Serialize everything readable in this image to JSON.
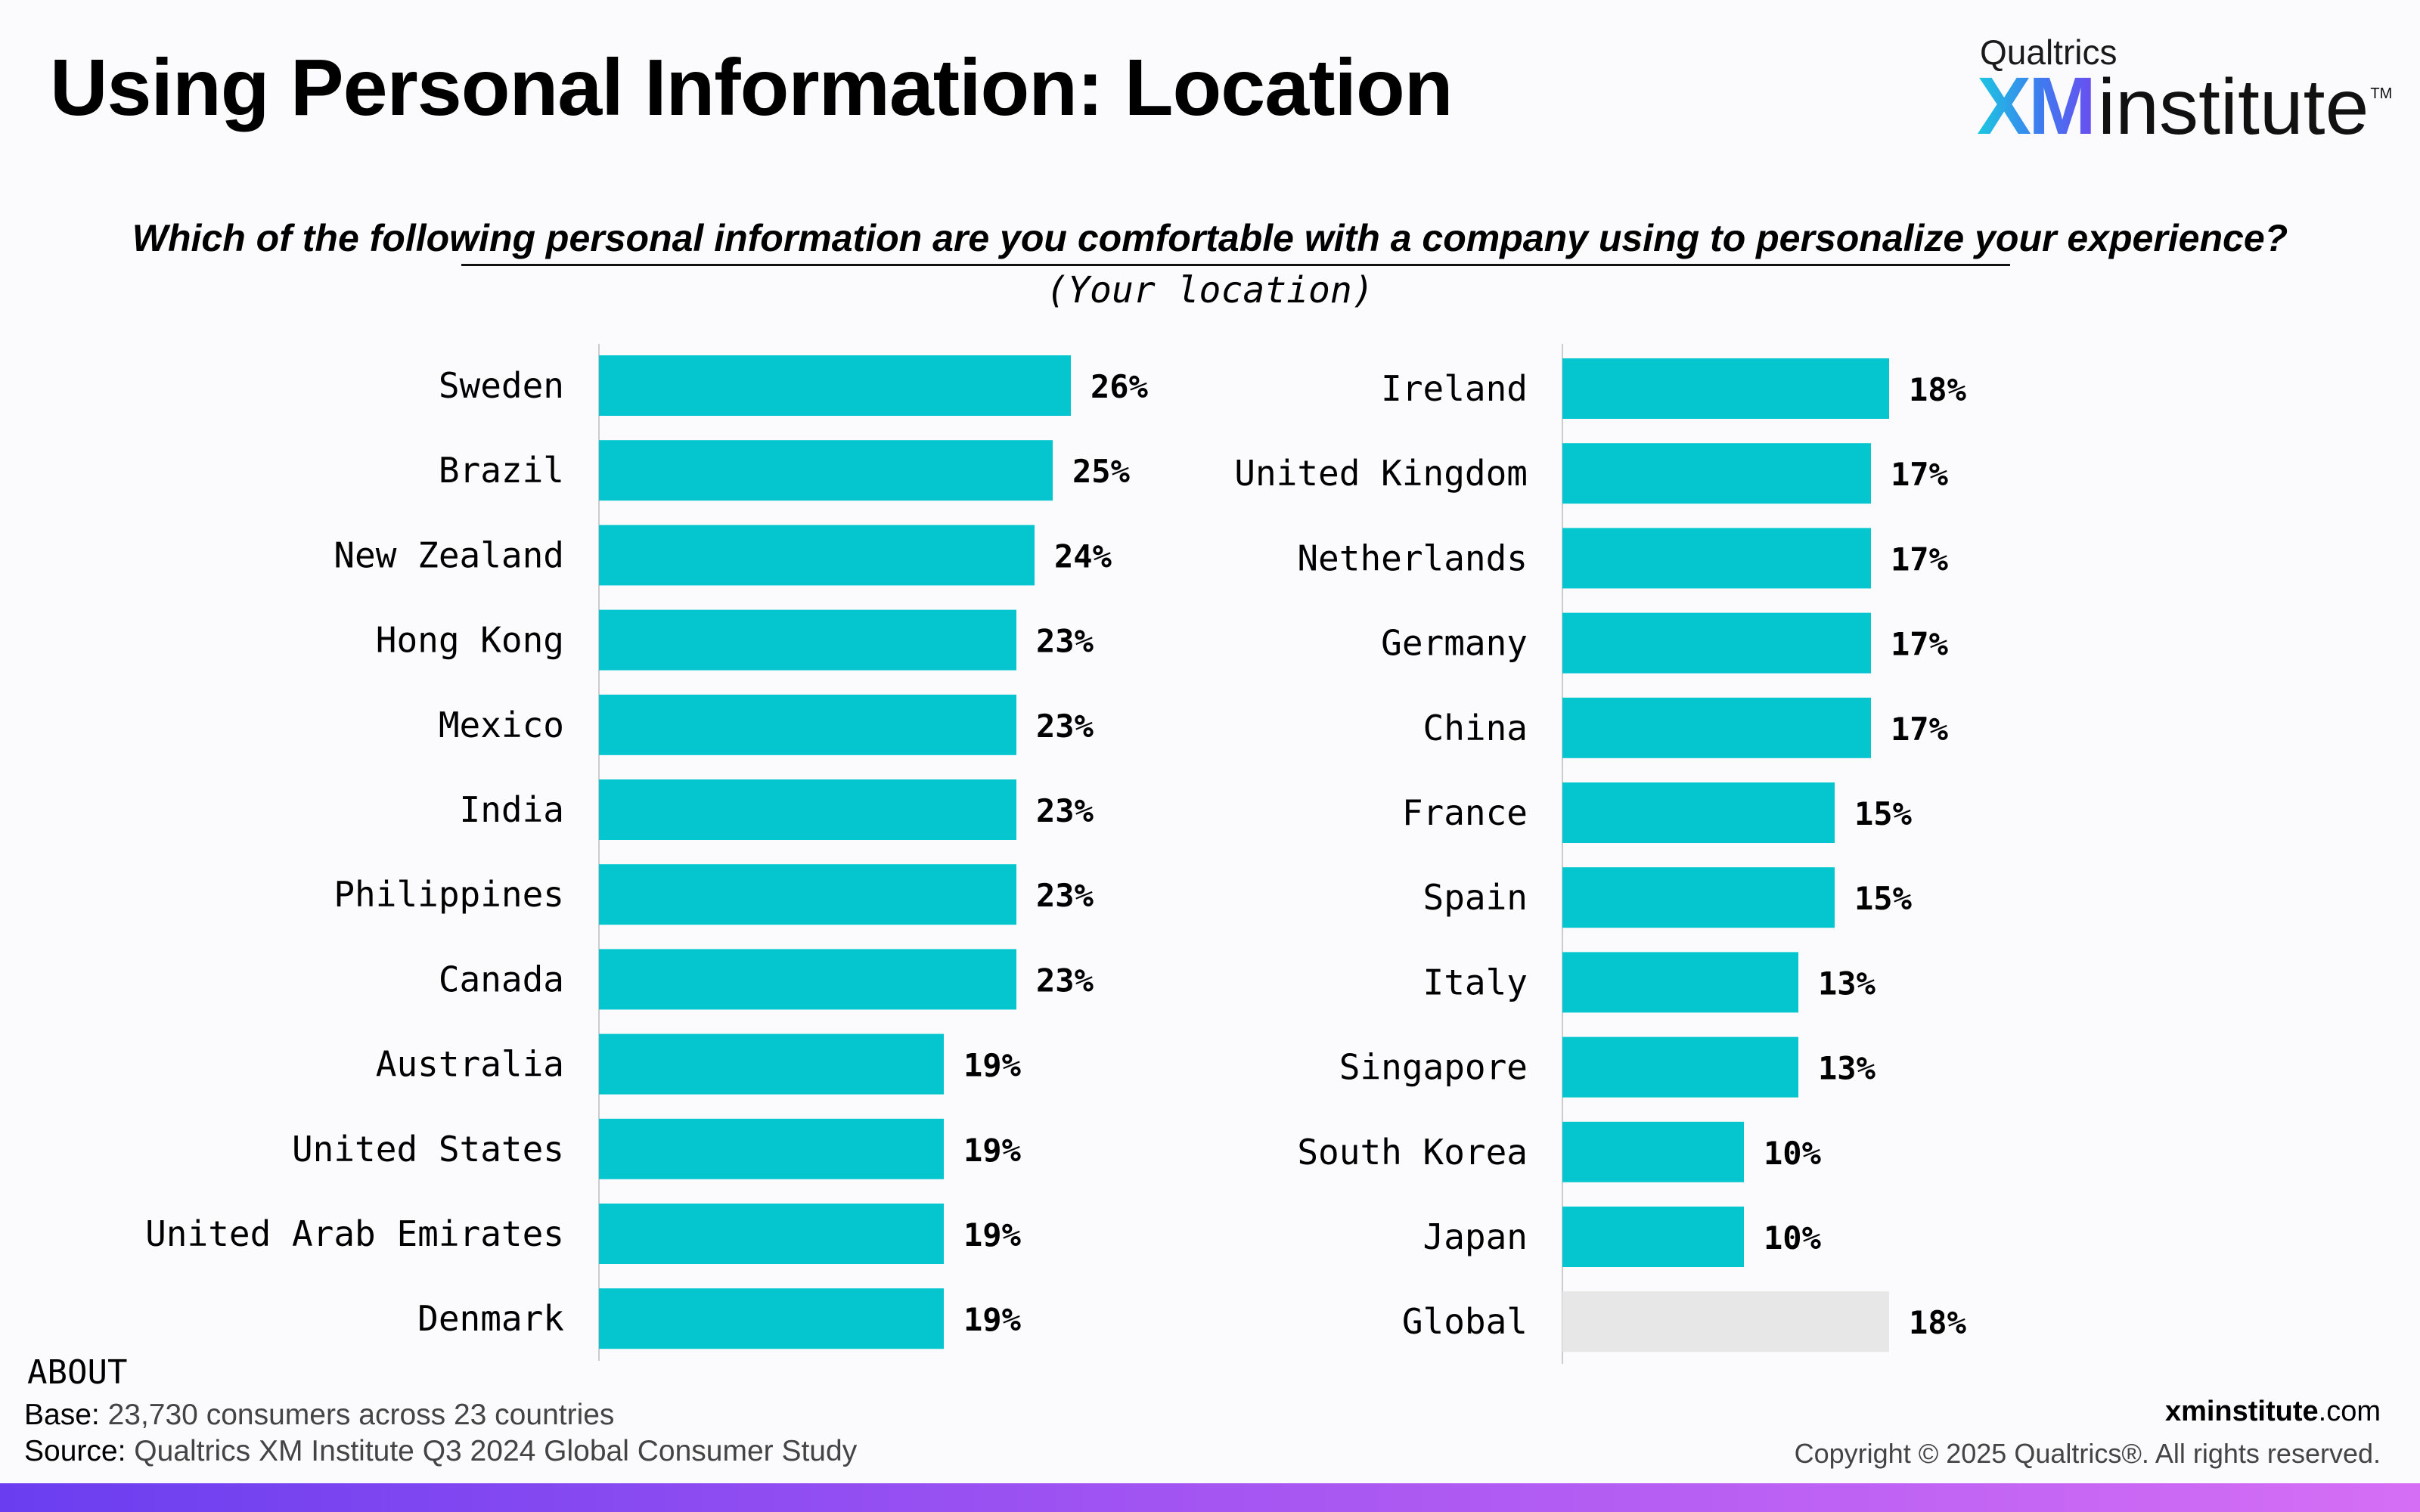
{
  "header": {
    "title": "Using Personal Information: Location",
    "logo_top": "Qualtrics",
    "logo_xm": "XM",
    "logo_institute": "institute",
    "logo_tm": "TM"
  },
  "chart_data": {
    "type": "bar",
    "orientation": "horizontal",
    "title": "Which of the following personal information are you comfortable with a company using to personalize your experience?",
    "subtitle": "(Your location)",
    "value_format": "percent",
    "xlim": [
      0,
      100
    ],
    "grid": false,
    "colors": {
      "country": "#05c5cf",
      "global": "#e7e7e7",
      "axis": "#cccccc"
    },
    "panels": [
      {
        "categories": [
          "Sweden",
          "Brazil",
          "New Zealand",
          "Hong Kong",
          "Mexico",
          "India",
          "Philippines",
          "Canada",
          "Australia",
          "United States",
          "United Arab Emirates",
          "Denmark"
        ],
        "values": [
          26,
          25,
          24,
          23,
          23,
          23,
          23,
          23,
          19,
          19,
          19,
          19
        ],
        "labels": [
          "26%",
          "25%",
          "24%",
          "23%",
          "23%",
          "23%",
          "23%",
          "23%",
          "19%",
          "19%",
          "19%",
          "19%"
        ],
        "highlight": [
          false,
          false,
          false,
          false,
          false,
          false,
          false,
          false,
          false,
          false,
          false,
          false
        ]
      },
      {
        "categories": [
          "Ireland",
          "United Kingdom",
          "Netherlands",
          "Germany",
          "China",
          "France",
          "Spain",
          "Italy",
          "Singapore",
          "South Korea",
          "Japan",
          "Global"
        ],
        "values": [
          18,
          17,
          17,
          17,
          17,
          15,
          15,
          13,
          13,
          10,
          10,
          18
        ],
        "labels": [
          "18%",
          "17%",
          "17%",
          "17%",
          "17%",
          "15%",
          "15%",
          "13%",
          "13%",
          "10%",
          "10%",
          "18%"
        ],
        "highlight": [
          false,
          false,
          false,
          false,
          false,
          false,
          false,
          false,
          false,
          false,
          false,
          true
        ]
      }
    ]
  },
  "footer": {
    "about_heading": "ABOUT",
    "base_key": "Base:",
    "base_value": "23,730 consumers across 23 countries",
    "source_key": "Source:",
    "source_value": "Qualtrics XM Institute Q3 2024 Global Consumer Study",
    "site_bold": "xminstitute",
    "site_rest": ".com",
    "copyright": "Copyright © 2025 Qualtrics®. All rights reserved."
  }
}
